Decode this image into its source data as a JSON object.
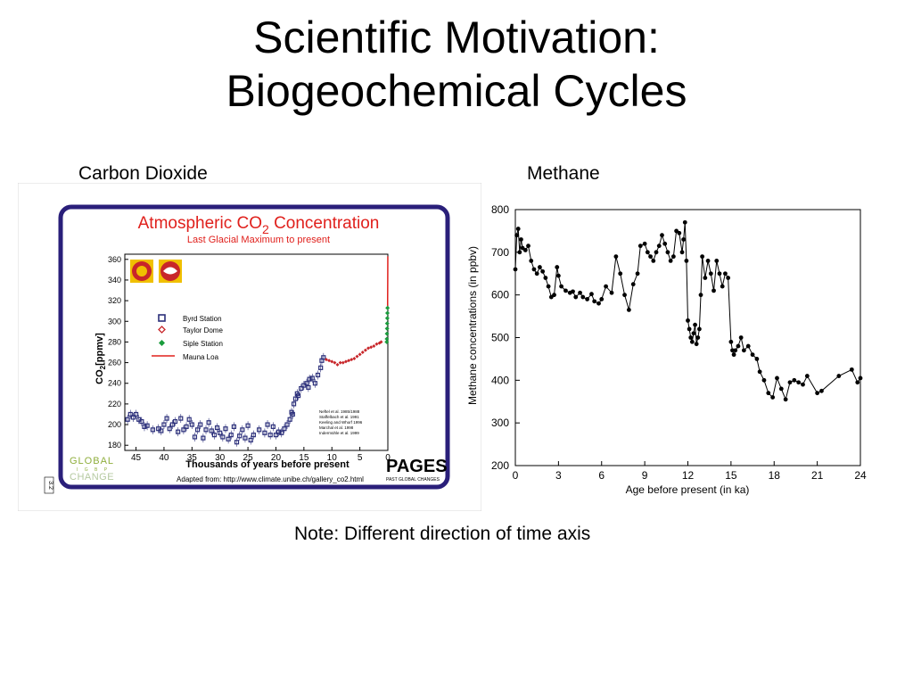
{
  "slide": {
    "title_line1": "Scientific Motivation:",
    "title_line2": "Biogeochemical Cycles",
    "left_label": "Carbon Dioxide",
    "right_label": "Methane",
    "note": "Note: Different direction of time axis"
  },
  "chart_data": [
    {
      "type": "scatter",
      "title": "Atmospheric CO2 Concentration",
      "title_main": "Atmospheric CO",
      "title_sub": "2",
      "title_tail": " Concentration",
      "subtitle": "Last Glacial Maximum to present",
      "xlabel": "Thousands of years before present",
      "ylabel": "CO2[ppmv]",
      "ylabel_main": "CO",
      "ylabel_sub": "2",
      "ylabel_tail": "[ppmv]",
      "xlim": [
        47,
        0
      ],
      "ylim": [
        175,
        365
      ],
      "xticks": [
        45,
        40,
        35,
        30,
        25,
        20,
        15,
        10,
        5,
        0
      ],
      "yticks": [
        180,
        200,
        220,
        240,
        260,
        280,
        300,
        320,
        340,
        360
      ],
      "legend": {
        "placement": "left",
        "entries": [
          "Byrd Station",
          "Taylor Dome",
          "Siple Station",
          "Mauna Loa"
        ]
      },
      "references": [
        "Neftel et al. 1985/1988",
        "Staffelbach et al. 1991",
        "Keeling and Whorf 1996",
        "Marchal et al. 1998",
        "Indermühle et al. 1999"
      ],
      "source": "Adapted from: http://www.climate.unibe.ch/gallery_co2.html",
      "logos": {
        "left_top": "GLOBAL",
        "left_mid": "I G B P",
        "left_bottom": "CHANGE",
        "right": "PAGES",
        "right_sub": "PAST GLOBAL CHANGES",
        "side_tag": "3.2"
      },
      "colors": {
        "frame": "#2a1f7a",
        "title": "#e0201c",
        "byrd": "#2b2f7a",
        "taylor": "#c8262a",
        "siple": "#1a9c3c",
        "mauna": "#e0201c"
      },
      "series": [
        {
          "name": "Byrd Station",
          "x": [
            46.5,
            46,
            45.5,
            45,
            44.5,
            44,
            43.5,
            43,
            42,
            41,
            40.5,
            40,
            39.5,
            39,
            38.5,
            38,
            37.5,
            37,
            36.5,
            36,
            35.5,
            35,
            34.5,
            34,
            33.5,
            33,
            32.5,
            32,
            31.5,
            31,
            30.5,
            30,
            29.5,
            29,
            28.5,
            28,
            27.5,
            27,
            26.5,
            26,
            25.5,
            25,
            24.5,
            24,
            23,
            22,
            21.5,
            21,
            20.5,
            20,
            19.5,
            19,
            18.5,
            18,
            17.5,
            17.2,
            17,
            16.8,
            16.5,
            16.2,
            16,
            15.5,
            15,
            14.5,
            14.2,
            14,
            13.5,
            13,
            12.5,
            12,
            11.8,
            11.5
          ],
          "y": [
            205,
            210,
            207,
            210,
            205,
            203,
            198,
            199,
            195,
            196,
            194,
            200,
            206,
            196,
            200,
            203,
            193,
            206,
            195,
            198,
            205,
            200,
            188,
            195,
            200,
            187,
            195,
            202,
            194,
            190,
            197,
            192,
            188,
            196,
            186,
            190,
            198,
            183,
            189,
            195,
            187,
            199,
            185,
            190,
            195,
            192,
            200,
            190,
            198,
            190,
            193,
            192,
            196,
            200,
            205,
            212,
            210,
            220,
            225,
            230,
            228,
            235,
            238,
            240,
            236,
            244,
            245,
            240,
            248,
            255,
            262,
            265
          ]
        },
        {
          "name": "Taylor Dome",
          "x": [
            11,
            10.5,
            10,
            9.5,
            9,
            8.5,
            8,
            7.5,
            7,
            6.5,
            6,
            5.5,
            5,
            4.5,
            4,
            3.5,
            3,
            2.5,
            2,
            1.5,
            1.2
          ],
          "y": [
            263,
            262,
            261,
            260,
            258,
            260,
            260,
            261,
            262,
            263,
            264,
            266,
            268,
            270,
            272,
            274,
            275,
            276,
            278,
            279,
            280
          ]
        },
        {
          "name": "Siple Station",
          "x": [
            0.2,
            0.18,
            0.16,
            0.14,
            0.12,
            0.1,
            0.08,
            0.06
          ],
          "y": [
            280,
            283,
            288,
            293,
            298,
            303,
            308,
            313
          ]
        },
        {
          "name": "Mauna Loa",
          "x": [
            0.045,
            0.04,
            0.03,
            0.02,
            0.01,
            0.005
          ],
          "y": [
            315,
            320,
            330,
            340,
            355,
            363
          ]
        }
      ]
    },
    {
      "type": "line",
      "title": "",
      "xlabel": "Age before present (in ka)",
      "ylabel": "Methane concentrations (in ppbv)",
      "xlim": [
        0,
        24
      ],
      "ylim": [
        200,
        800
      ],
      "xticks": [
        0,
        3,
        6,
        9,
        12,
        15,
        18,
        21,
        24
      ],
      "yticks": [
        200,
        300,
        400,
        500,
        600,
        700,
        800
      ],
      "grid": false,
      "series": [
        {
          "x": [
            0.0,
            0.1,
            0.2,
            0.3,
            0.4,
            0.5,
            0.7,
            0.9,
            1.1,
            1.3,
            1.5,
            1.7,
            1.9,
            2.1,
            2.3,
            2.5,
            2.7,
            2.9,
            3.0,
            3.2,
            3.5,
            3.8,
            4.0,
            4.2,
            4.5,
            4.7,
            5.0,
            5.3,
            5.5,
            5.8,
            6.0,
            6.3,
            6.7,
            7.0,
            7.3,
            7.6,
            7.9,
            8.2,
            8.5,
            8.7,
            9.0,
            9.2,
            9.4,
            9.6,
            9.8,
            10.0,
            10.2,
            10.4,
            10.6,
            10.8,
            11.0,
            11.2,
            11.4,
            11.6,
            11.7,
            11.8,
            11.9,
            12.0,
            12.1,
            12.2,
            12.3,
            12.4,
            12.5,
            12.6,
            12.7,
            12.8,
            12.9,
            13.0,
            13.2,
            13.4,
            13.6,
            13.8,
            14.0,
            14.2,
            14.4,
            14.6,
            14.8,
            15.0,
            15.1,
            15.2,
            15.3,
            15.5,
            15.7,
            15.9,
            16.2,
            16.5,
            16.8,
            17.0,
            17.3,
            17.6,
            17.9,
            18.2,
            18.5,
            18.8,
            19.1,
            19.4,
            19.7,
            20.0,
            20.3,
            21.0,
            21.3,
            22.5,
            23.4,
            23.8,
            24.0
          ],
          "y": [
            660,
            740,
            755,
            700,
            730,
            710,
            705,
            715,
            680,
            660,
            650,
            665,
            655,
            640,
            620,
            595,
            600,
            665,
            645,
            620,
            610,
            605,
            608,
            595,
            605,
            595,
            590,
            602,
            585,
            580,
            590,
            620,
            605,
            690,
            650,
            600,
            565,
            625,
            650,
            715,
            720,
            700,
            690,
            680,
            700,
            715,
            740,
            720,
            700,
            680,
            690,
            750,
            745,
            700,
            730,
            770,
            680,
            540,
            520,
            500,
            490,
            510,
            530,
            485,
            500,
            520,
            600,
            690,
            640,
            680,
            650,
            610,
            680,
            650,
            620,
            650,
            640,
            490,
            470,
            460,
            470,
            480,
            500,
            470,
            480,
            460,
            450,
            420,
            400,
            370,
            360,
            405,
            380,
            355,
            395,
            400,
            395,
            390,
            410,
            370,
            375,
            410,
            425,
            395,
            405
          ]
        }
      ]
    }
  ]
}
